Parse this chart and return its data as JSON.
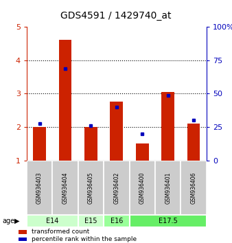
{
  "title": "GDS4591 / 1429740_at",
  "samples": [
    "GSM936403",
    "GSM936404",
    "GSM936405",
    "GSM936402",
    "GSM936400",
    "GSM936401",
    "GSM936406"
  ],
  "red_values": [
    2.0,
    4.6,
    2.0,
    2.75,
    1.5,
    3.05,
    2.1
  ],
  "blue_values": [
    2.1,
    3.75,
    2.05,
    2.6,
    1.8,
    2.95,
    2.2
  ],
  "age_groups": [
    {
      "label": "E14",
      "start": 0,
      "end": 2,
      "color": "#ccffcc"
    },
    {
      "label": "E15",
      "start": 2,
      "end": 3,
      "color": "#ccffcc"
    },
    {
      "label": "E16",
      "start": 3,
      "end": 4,
      "color": "#99ff99"
    },
    {
      "label": "E17.5",
      "start": 4,
      "end": 7,
      "color": "#66ee66"
    }
  ],
  "ylim": [
    1,
    5
  ],
  "yticks_left": [
    1,
    2,
    3,
    4,
    5
  ],
  "yticks_right_labels": [
    "0",
    "25",
    "50",
    "75",
    "100%"
  ],
  "grid_lines": [
    2,
    3,
    4
  ],
  "red_color": "#cc2200",
  "blue_color": "#0000bb",
  "bar_width": 0.5,
  "sample_bg_color": "#cccccc",
  "title_fontsize": 10,
  "legend_items": [
    {
      "color": "#cc2200",
      "label": "transformed count"
    },
    {
      "color": "#0000bb",
      "label": "percentile rank within the sample"
    }
  ]
}
